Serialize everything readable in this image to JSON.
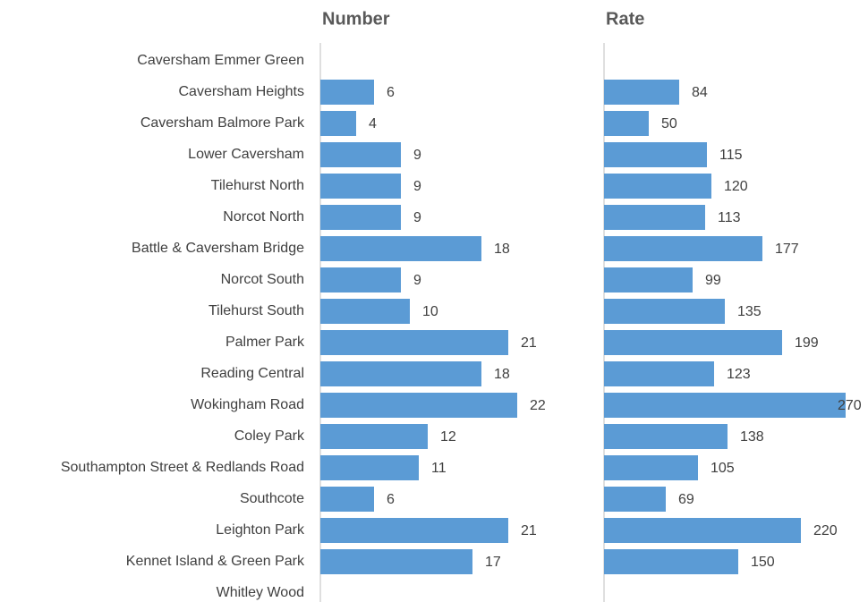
{
  "chart_data": {
    "type": "bar",
    "orientation": "horizontal",
    "categories": [
      "Caversham Emmer Green",
      "Caversham Heights",
      "Caversham Balmore Park",
      "Lower Caversham",
      "Tilehurst North",
      "Norcot North",
      "Battle & Caversham Bridge",
      "Norcot South",
      "Tilehurst South",
      "Palmer Park",
      "Reading Central",
      "Wokingham Road",
      "Coley Park",
      "Southampton Street & Redlands Road",
      "Southcote",
      "Leighton Park",
      "Kennet Island & Green Park",
      "Whitley Wood"
    ],
    "series": [
      {
        "name": "Number",
        "color": "#5b9bd5",
        "xlim": [
          0,
          25
        ],
        "values": [
          null,
          6,
          4,
          9,
          9,
          9,
          18,
          9,
          10,
          21,
          18,
          22,
          12,
          11,
          6,
          21,
          17,
          null
        ]
      },
      {
        "name": "Rate",
        "color": "#5b9bd5",
        "xlim": [
          0,
          300
        ],
        "values": [
          null,
          84,
          50,
          115,
          120,
          113,
          177,
          99,
          135,
          199,
          123,
          270,
          138,
          105,
          69,
          220,
          150,
          null
        ]
      }
    ]
  }
}
